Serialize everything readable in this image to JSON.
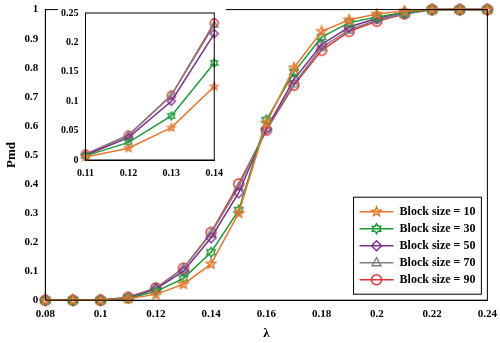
{
  "chart_data": [
    {
      "type": "line",
      "x_label": "λ",
      "y_label": "Pmd",
      "x": [
        0.08,
        0.09,
        0.1,
        0.11,
        0.12,
        0.13,
        0.14,
        0.15,
        0.16,
        0.17,
        0.18,
        0.19,
        0.2,
        0.21,
        0.22,
        0.23,
        0.24
      ],
      "series": [
        {
          "name": "Block size = 10",
          "color": "#e8772e",
          "marker": "pentagram",
          "line_style": "solid",
          "values": [
            0,
            0,
            0,
            0.005,
            0.02,
            0.055,
            0.125,
            0.3,
            0.61,
            0.8,
            0.925,
            0.965,
            0.985,
            0.995,
            1,
            1,
            1
          ]
        },
        {
          "name": "Block size = 30",
          "color": "#1e9a3a",
          "marker": "hexagram",
          "line_style": "solid",
          "values": [
            0,
            0,
            0,
            0.007,
            0.03,
            0.075,
            0.165,
            0.31,
            0.62,
            0.785,
            0.905,
            0.955,
            0.975,
            0.99,
            1,
            1,
            1
          ]
        },
        {
          "name": "Block size = 50",
          "color": "#7e2f8e",
          "marker": "diamond",
          "line_style": "solid",
          "values": [
            0,
            0,
            0,
            0.008,
            0.038,
            0.1,
            0.215,
            0.37,
            0.59,
            0.76,
            0.88,
            0.94,
            0.97,
            0.99,
            1,
            1,
            1
          ]
        },
        {
          "name": "Block size = 70",
          "color": "#808080",
          "marker": "triangle",
          "line_style": "solid",
          "values": [
            0,
            0,
            0,
            0.009,
            0.042,
            0.11,
            0.23,
            0.39,
            0.59,
            0.745,
            0.87,
            0.93,
            0.965,
            0.985,
            1,
            1,
            1
          ]
        },
        {
          "name": "Block size = 90",
          "color": "#e03030",
          "marker": "circle",
          "line_style": "solid",
          "values": [
            0,
            0,
            0,
            0.01,
            0.042,
            0.11,
            0.233,
            0.4,
            0.585,
            0.74,
            0.86,
            0.925,
            0.96,
            0.985,
            1,
            1,
            1
          ]
        }
      ],
      "xlim": [
        0.08,
        0.24
      ],
      "xticks": [
        0.08,
        0.1,
        0.12,
        0.14,
        0.16,
        0.18,
        0.2,
        0.22,
        0.24
      ],
      "ylim": [
        0,
        1
      ],
      "yticks": [
        0,
        0.1,
        0.2,
        0.3,
        0.4,
        0.5,
        0.6,
        0.7,
        0.8,
        0.9,
        1
      ],
      "grid": false,
      "legend": "lower right"
    },
    {
      "type": "line",
      "x": [
        0.11,
        0.12,
        0.13,
        0.14
      ],
      "series": [
        {
          "name": "Block size = 10",
          "color": "#e8772e",
          "marker": "pentagram",
          "line_style": "solid",
          "values": [
            0.005,
            0.02,
            0.055,
            0.125
          ]
        },
        {
          "name": "Block size = 30",
          "color": "#1e9a3a",
          "marker": "hexagram",
          "line_style": "solid",
          "values": [
            0.007,
            0.03,
            0.075,
            0.165
          ]
        },
        {
          "name": "Block size = 50",
          "color": "#7e2f8e",
          "marker": "diamond",
          "line_style": "solid",
          "values": [
            0.008,
            0.038,
            0.1,
            0.215
          ]
        },
        {
          "name": "Block size = 70",
          "color": "#808080",
          "marker": "triangle",
          "line_style": "solid",
          "values": [
            0.009,
            0.042,
            0.11,
            0.23
          ]
        },
        {
          "name": "Block size = 90",
          "color": "#e03030",
          "marker": "circle",
          "line_style": "solid",
          "values": [
            0.01,
            0.042,
            0.11,
            0.233
          ]
        }
      ],
      "xlim": [
        0.11,
        0.14
      ],
      "xticks": [
        0.11,
        0.12,
        0.13,
        0.14
      ],
      "ylim": [
        0,
        0.25
      ],
      "yticks": [
        0,
        0.05,
        0.1,
        0.15,
        0.2,
        0.25
      ],
      "grid": false
    }
  ]
}
